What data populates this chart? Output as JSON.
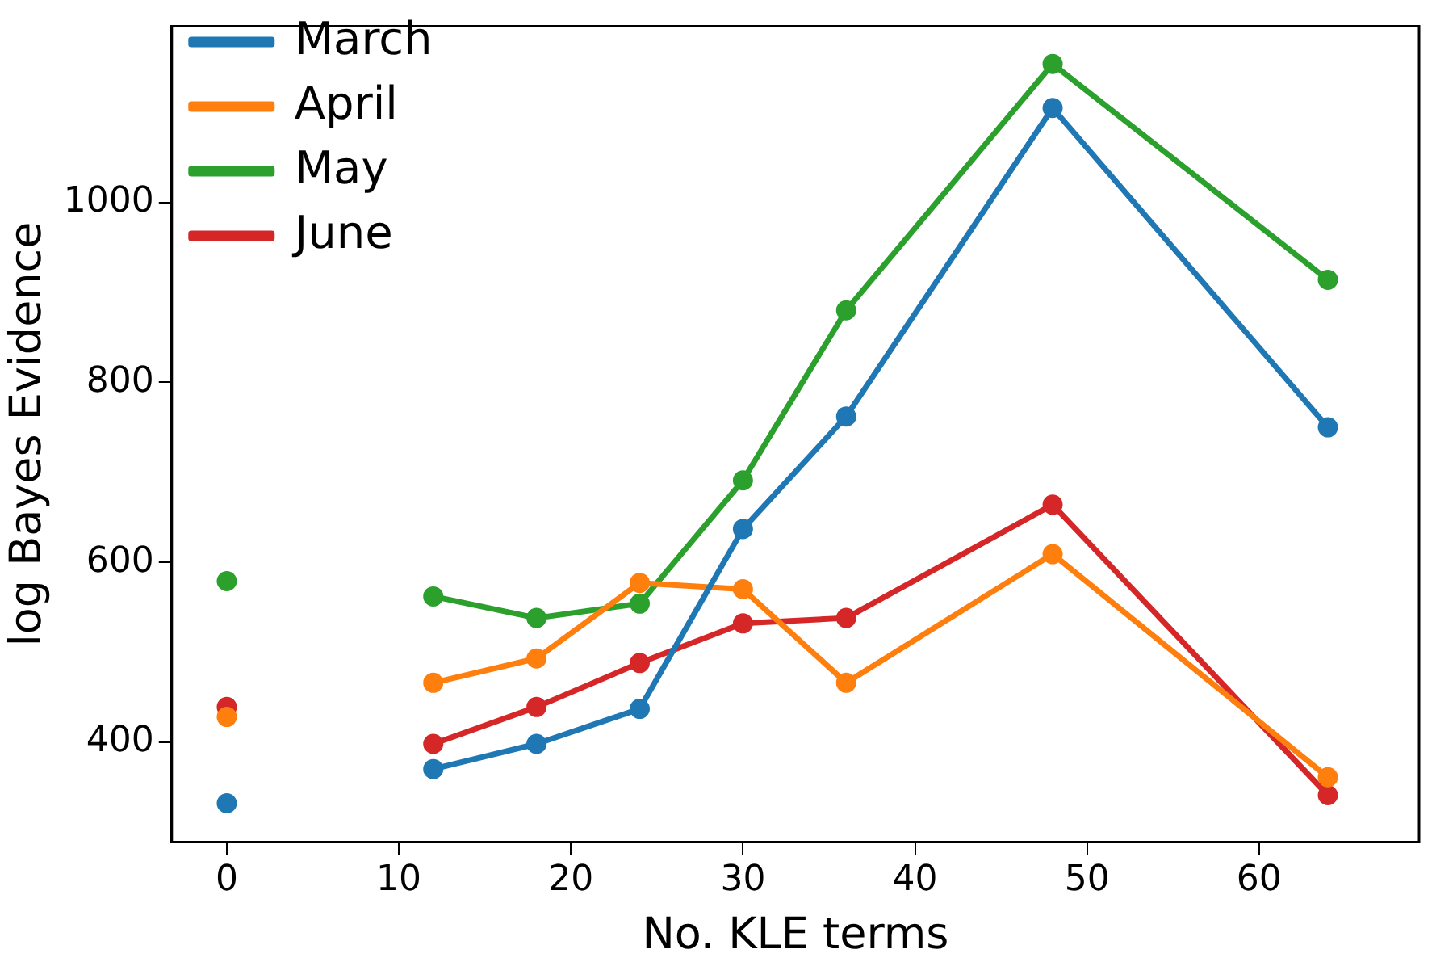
{
  "chart_data": {
    "type": "line",
    "xlabel": "No. KLE terms",
    "ylabel": "log Bayes Evidence",
    "x": [
      0,
      6,
      12,
      18,
      24,
      30,
      36,
      48,
      64
    ],
    "series": [
      {
        "name": "March",
        "color": "#1f77b4",
        "values": [
          332,
          null,
          370,
          398,
          437,
          637,
          762,
          1105,
          750
        ]
      },
      {
        "name": "April",
        "color": "#ff7f0e",
        "values": [
          428,
          null,
          466,
          493,
          577,
          570,
          466,
          609,
          361
        ]
      },
      {
        "name": "May",
        "color": "#2ca02c",
        "values": [
          579,
          null,
          562,
          538,
          554,
          691,
          880,
          1154,
          914
        ]
      },
      {
        "name": "June",
        "color": "#d62728",
        "values": [
          439,
          null,
          398,
          439,
          488,
          532,
          538,
          664,
          341
        ]
      }
    ],
    "xlim": [
      -3.2,
      69.3
    ],
    "ylim": [
      289,
      1196
    ],
    "xticks": [
      0,
      10,
      20,
      30,
      40,
      50,
      60
    ],
    "yticks": [
      400,
      600,
      800,
      1000
    ],
    "grid": false,
    "legend": "top left",
    "marker": "circle",
    "line_style": "solid"
  }
}
